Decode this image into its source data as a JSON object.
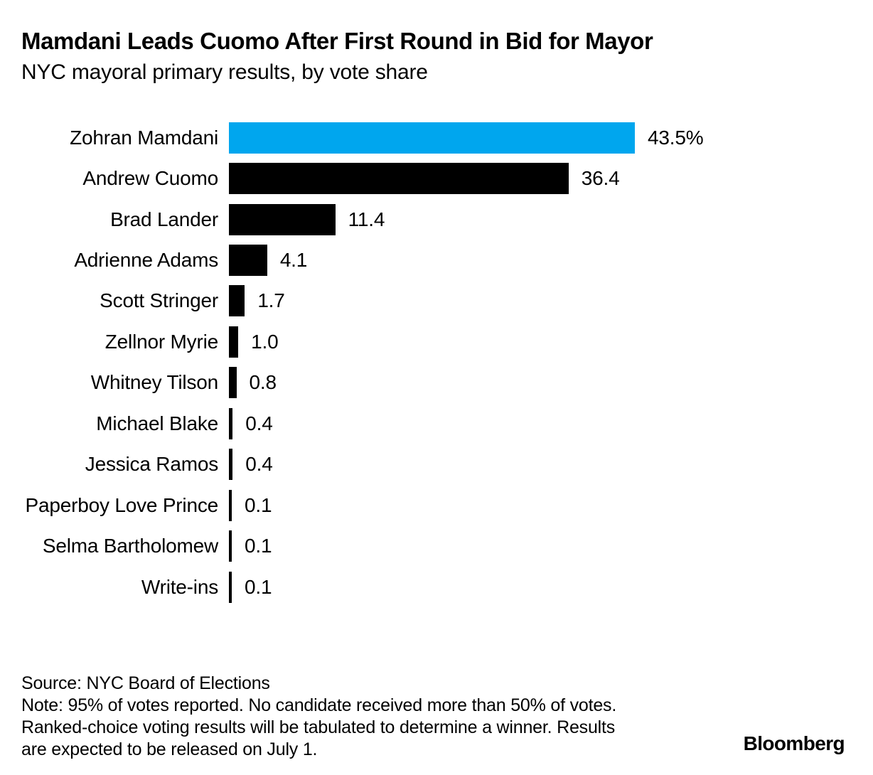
{
  "header": {
    "title": "Mamdani Leads Cuomo After First Round in Bid for Mayor",
    "subtitle": "NYC mayoral primary results, by vote share"
  },
  "chart_data": {
    "type": "bar",
    "orientation": "horizontal",
    "title": "Mamdani Leads Cuomo After First Round in Bid for Mayor",
    "subtitle": "NYC mayoral primary results, by vote share",
    "categories": [
      "Zohran Mamdani",
      "Andrew Cuomo",
      "Brad Lander",
      "Adrienne Adams",
      "Scott Stringer",
      "Zellnor Myrie",
      "Whitney Tilson",
      "Michael Blake",
      "Jessica Ramos",
      "Paperboy Love Prince",
      "Selma Bartholomew",
      "Write-ins"
    ],
    "values": [
      43.5,
      36.4,
      11.4,
      4.1,
      1.7,
      1.0,
      0.8,
      0.4,
      0.4,
      0.1,
      0.1,
      0.1
    ],
    "value_labels": [
      "43.5%",
      "36.4",
      "11.4",
      "4.1",
      "1.7",
      "1.0",
      "0.8",
      "0.4",
      "0.4",
      "0.1",
      "0.1",
      "0.1"
    ],
    "unit": "percent of vote share",
    "xlim": [
      0,
      43.5
    ],
    "grid": false,
    "legend": false,
    "highlight_index": 0,
    "colors": {
      "highlight": "#00A6EE",
      "bar": "#000000",
      "text": "#000000",
      "background": "#FFFFFF"
    }
  },
  "footer": {
    "source": "Source: NYC Board of Elections",
    "note_lines": [
      "Note: 95% of votes reported. No candidate received more than 50% of votes.",
      "Ranked-choice voting results will be tabulated to determine a winner. Results",
      "are expected to be released on July 1."
    ]
  },
  "branding": {
    "logo_text": "Bloomberg"
  }
}
